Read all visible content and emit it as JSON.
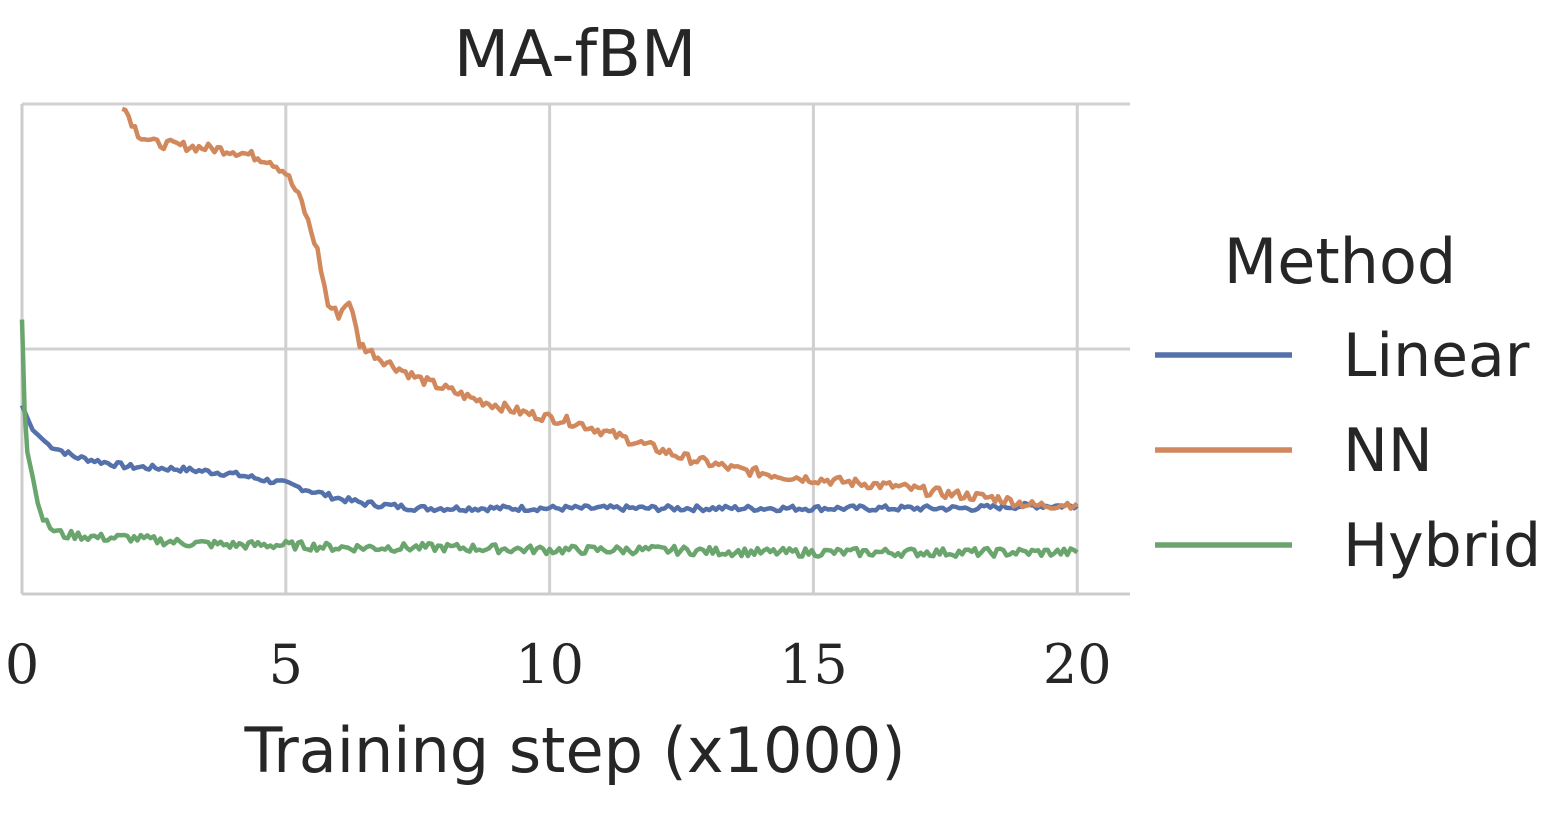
{
  "chart_data": {
    "type": "line",
    "title": "MA-fBM",
    "xlabel": "Training step (x1000)",
    "ylabel": "",
    "xlim": [
      0,
      21
    ],
    "ylim": [
      0,
      2
    ],
    "x_ticks": [
      0,
      5,
      10,
      15,
      20
    ],
    "x_tick_labels": [
      "0",
      "5",
      "10",
      "15",
      "20"
    ],
    "y_ticks": [
      0,
      1,
      2
    ],
    "y_tick_labels": [
      "",
      "",
      ""
    ],
    "grid": true,
    "legend": {
      "title": "Method",
      "placement": "right"
    },
    "series": [
      {
        "name": "Linear",
        "color": "#5471ab",
        "x": [
          0,
          0.2,
          0.5,
          1,
          1.5,
          2,
          3,
          4,
          5,
          5.5,
          6,
          6.5,
          7,
          7.5,
          8,
          9,
          10,
          12,
          14,
          16,
          18,
          19,
          20
        ],
        "y": [
          0.77,
          0.67,
          0.61,
          0.56,
          0.54,
          0.52,
          0.51,
          0.49,
          0.45,
          0.42,
          0.39,
          0.37,
          0.36,
          0.35,
          0.35,
          0.35,
          0.35,
          0.35,
          0.35,
          0.35,
          0.35,
          0.36,
          0.36
        ]
      },
      {
        "name": "NN",
        "color": "#d1885c",
        "x": [
          1.9,
          2.2,
          2.5,
          3,
          4,
          4.7,
          5,
          5.3,
          5.6,
          5.8,
          6.0,
          6.2,
          6.4,
          6.8,
          7.5,
          8.5,
          9.5,
          10.5,
          11.5,
          12.5,
          13.5,
          14.5,
          15.5,
          16.5,
          17.5,
          18.5,
          19.2,
          20
        ],
        "y": [
          2.0,
          1.88,
          1.84,
          1.83,
          1.81,
          1.77,
          1.72,
          1.6,
          1.4,
          1.18,
          1.14,
          1.2,
          1.02,
          0.96,
          0.88,
          0.8,
          0.74,
          0.7,
          0.63,
          0.56,
          0.51,
          0.48,
          0.46,
          0.44,
          0.41,
          0.39,
          0.36,
          0.37
        ]
      },
      {
        "name": "Hybrid",
        "color": "#6aa56e",
        "x": [
          0,
          0.05,
          0.1,
          0.2,
          0.3,
          0.4,
          0.6,
          0.8,
          1,
          1.5,
          2,
          2.5,
          3,
          4,
          5,
          6,
          7,
          8,
          10,
          12,
          14,
          16,
          18,
          19.5,
          20
        ],
        "y": [
          1.12,
          0.75,
          0.58,
          0.48,
          0.37,
          0.3,
          0.26,
          0.24,
          0.24,
          0.23,
          0.23,
          0.22,
          0.21,
          0.2,
          0.2,
          0.19,
          0.19,
          0.19,
          0.18,
          0.18,
          0.17,
          0.17,
          0.17,
          0.17,
          0.17
        ]
      }
    ]
  }
}
